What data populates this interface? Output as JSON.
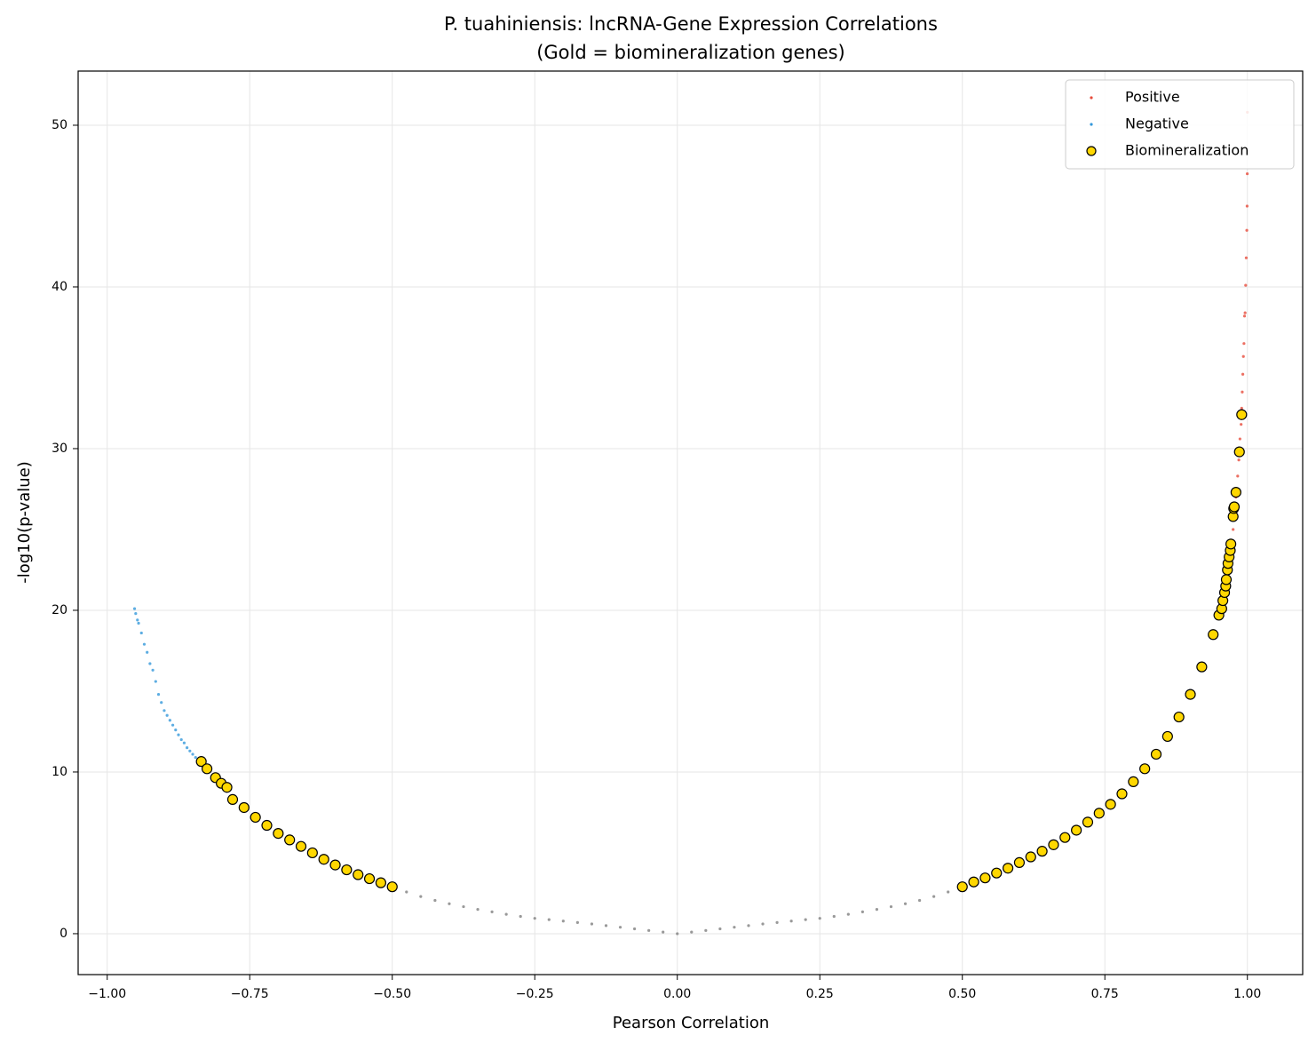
{
  "chart_data": {
    "type": "scatter",
    "title": "P. tuahiniensis: lncRNA-Gene Expression Correlations",
    "subtitle": "(Gold = biomineralization genes)",
    "x_label": "Pearson Correlation",
    "y_label": "-log10(p-value)",
    "xlim": [
      -1.051,
      1.097
    ],
    "ylim": [
      -2.53,
      53.35
    ],
    "xticks": [
      {
        "value": -1.0,
        "label": "−1.00"
      },
      {
        "value": -0.75,
        "label": "−0.75"
      },
      {
        "value": -0.5,
        "label": "−0.50"
      },
      {
        "value": -0.25,
        "label": "−0.25"
      },
      {
        "value": 0,
        "label": "0.00"
      },
      {
        "value": 0.25,
        "label": "0.25"
      },
      {
        "value": 0.5,
        "label": "0.50"
      },
      {
        "value": 0.75,
        "label": "0.75"
      },
      {
        "value": 1.0,
        "label": "1.00"
      }
    ],
    "yticks": [
      0,
      10,
      20,
      30,
      40,
      50
    ],
    "grid": true,
    "legend": "upper right",
    "series": [
      {
        "name": "Positive",
        "color": "#e74c3c",
        "x": [
          0.97,
          0.972,
          0.975,
          0.978,
          0.98,
          0.983,
          0.985,
          0.987,
          0.989,
          0.99,
          0.991,
          0.992,
          0.993,
          0.994,
          0.995,
          0.996,
          0.997,
          0.998,
          0.999,
          0.9995,
          0.9998,
          1.0
        ],
        "values": [
          22.5,
          23.5,
          25,
          26,
          27,
          28.3,
          29.3,
          30.6,
          31.5,
          32.5,
          33.5,
          34.6,
          35.7,
          36.5,
          38.2,
          38.4,
          40.1,
          41.8,
          43.5,
          45,
          47,
          50.8
        ]
      },
      {
        "name": "Negative",
        "color": "#3498db",
        "x": [
          -0.952,
          -0.95,
          -0.947,
          -0.945,
          -0.94,
          -0.935,
          -0.93,
          -0.925,
          -0.92,
          -0.915,
          -0.91,
          -0.905,
          -0.9,
          -0.895,
          -0.89,
          -0.885,
          -0.88,
          -0.875,
          -0.87,
          -0.865,
          -0.86,
          -0.855,
          -0.85,
          -0.845
        ],
        "values": [
          20.1,
          19.8,
          19.4,
          19.2,
          18.6,
          17.9,
          17.4,
          16.7,
          16.3,
          15.6,
          14.8,
          14.3,
          13.8,
          13.5,
          13.2,
          12.9,
          12.6,
          12.3,
          12.0,
          11.8,
          11.5,
          11.3,
          11.1,
          10.9
        ]
      },
      {
        "color": "#808080",
        "x": [
          -0.475,
          -0.45,
          -0.425,
          -0.4,
          -0.375,
          -0.35,
          -0.325,
          -0.3,
          -0.275,
          -0.25,
          -0.225,
          -0.2,
          -0.175,
          -0.15,
          -0.125,
          -0.1,
          -0.075,
          -0.05,
          -0.025,
          0,
          0.025,
          0.05,
          0.075,
          0.1,
          0.125,
          0.15,
          0.175,
          0.2,
          0.225,
          0.25,
          0.275,
          0.3,
          0.325,
          0.35,
          0.375,
          0.4,
          0.425,
          0.45,
          0.475
        ],
        "values": [
          2.58,
          2.3,
          2.06,
          1.85,
          1.67,
          1.5,
          1.35,
          1.2,
          1.07,
          0.95,
          0.87,
          0.78,
          0.69,
          0.6,
          0.5,
          0.4,
          0.3,
          0.2,
          0.1,
          0,
          0.1,
          0.2,
          0.3,
          0.4,
          0.5,
          0.6,
          0.69,
          0.78,
          0.87,
          0.95,
          1.07,
          1.2,
          1.35,
          1.5,
          1.67,
          1.85,
          2.06,
          2.3,
          2.58
        ]
      },
      {
        "name": "Biomineralization",
        "color": "#ffd700",
        "edgecolor": "#000000",
        "x": [
          -0.835,
          -0.825,
          -0.81,
          -0.8,
          -0.79,
          -0.78,
          -0.76,
          -0.74,
          -0.72,
          -0.7,
          -0.68,
          -0.66,
          -0.64,
          -0.62,
          -0.6,
          -0.58,
          -0.56,
          -0.54,
          -0.52,
          -0.5,
          0.5,
          0.52,
          0.54,
          0.56,
          0.58,
          0.6,
          0.62,
          0.64,
          0.66,
          0.68,
          0.7,
          0.72,
          0.74,
          0.76,
          0.78,
          0.8,
          0.82,
          0.84,
          0.86,
          0.88,
          0.9,
          0.92,
          0.94,
          0.95,
          0.955,
          0.957,
          0.96,
          0.962,
          0.963,
          0.965,
          0.966,
          0.968,
          0.97,
          0.971,
          0.975,
          0.976,
          0.977,
          0.98,
          0.986,
          0.99
        ],
        "values": [
          10.65,
          10.2,
          9.65,
          9.3,
          9.05,
          8.3,
          7.8,
          7.2,
          6.7,
          6.2,
          5.8,
          5.4,
          5.0,
          4.6,
          4.25,
          3.95,
          3.65,
          3.4,
          3.15,
          2.9,
          2.9,
          3.2,
          3.45,
          3.75,
          4.05,
          4.4,
          4.75,
          5.1,
          5.5,
          5.95,
          6.4,
          6.9,
          7.45,
          8.0,
          8.65,
          9.4,
          10.2,
          11.1,
          12.2,
          13.4,
          14.8,
          16.5,
          18.5,
          19.7,
          20.1,
          20.6,
          21.1,
          21.5,
          21.9,
          22.5,
          22.9,
          23.3,
          23.7,
          24.1,
          25.8,
          26.3,
          26.4,
          27.3,
          29.8,
          32.1
        ]
      }
    ]
  }
}
